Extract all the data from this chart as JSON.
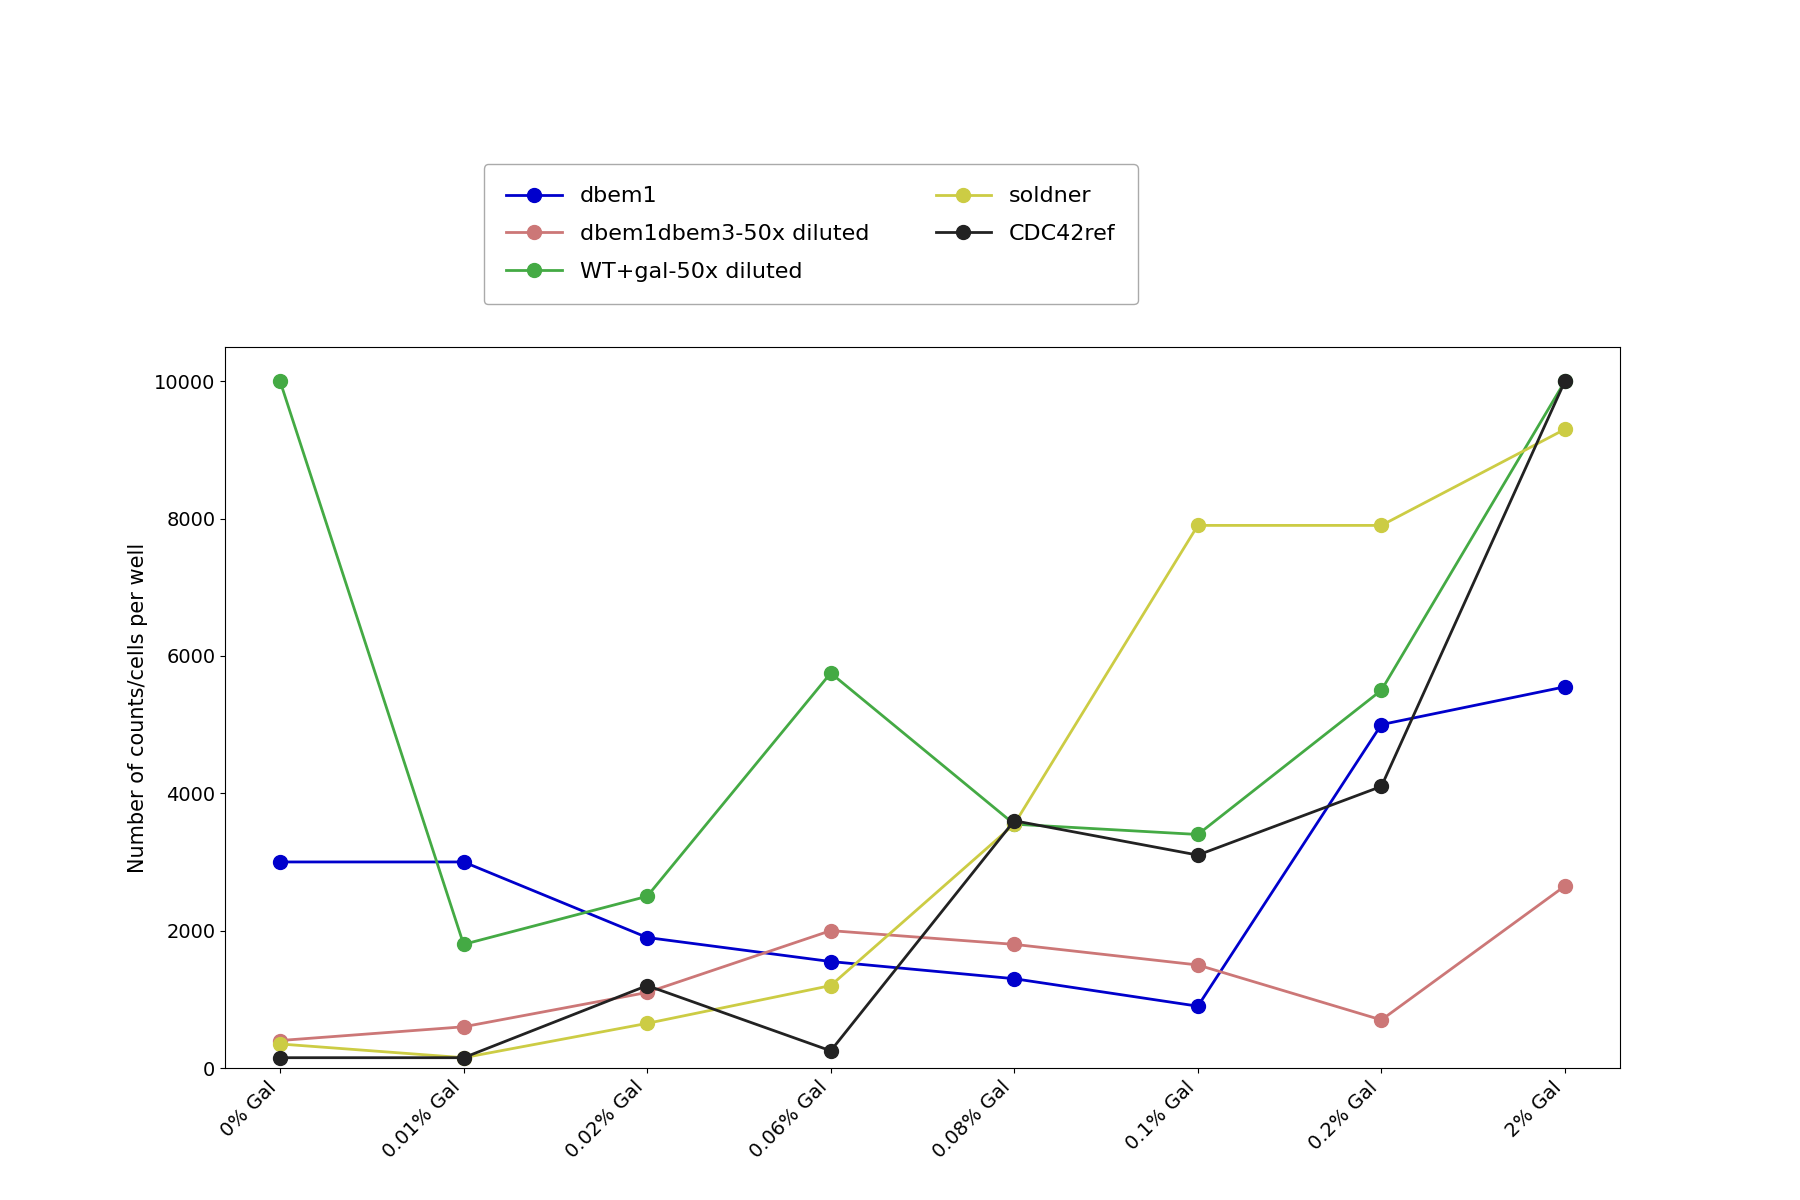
{
  "x_labels": [
    "0% Gal",
    "0.01% Gal",
    "0.02% Gal",
    "0.06% Gal",
    "0.08% Gal",
    "0.1% Gal",
    "0.2% Gal",
    "2% Gal"
  ],
  "series": {
    "dbem1": {
      "values": [
        3000,
        3000,
        1900,
        1550,
        1300,
        900,
        5000,
        5550
      ],
      "color": "#0000cc",
      "marker": "o",
      "linewidth": 2
    },
    "dbem1dbem3-50x diluted": {
      "values": [
        400,
        600,
        1100,
        2000,
        1800,
        1500,
        700,
        2650
      ],
      "color": "#cc7777",
      "marker": "o",
      "linewidth": 2
    },
    "WT+gal-50x diluted": {
      "values": [
        10000,
        1800,
        2500,
        5750,
        3550,
        3400,
        5500,
        10000
      ],
      "color": "#44aa44",
      "marker": "o",
      "linewidth": 2
    },
    "soldner": {
      "values": [
        350,
        150,
        650,
        1200,
        3550,
        7900,
        7900,
        9300
      ],
      "color": "#cccc44",
      "marker": "o",
      "linewidth": 2
    },
    "CDC42ref": {
      "values": [
        150,
        150,
        1200,
        250,
        3600,
        3100,
        4100,
        10000
      ],
      "color": "#222222",
      "marker": "o",
      "linewidth": 2
    }
  },
  "ylabel": "Number of counts/cells per well",
  "ylim": [
    0,
    10500
  ],
  "yticks": [
    0,
    2000,
    4000,
    6000,
    8000,
    10000
  ],
  "figsize": [
    18,
    12
  ],
  "dpi": 100,
  "legend_fontsize": 16,
  "axis_label_fontsize": 15,
  "tick_fontsize": 14
}
